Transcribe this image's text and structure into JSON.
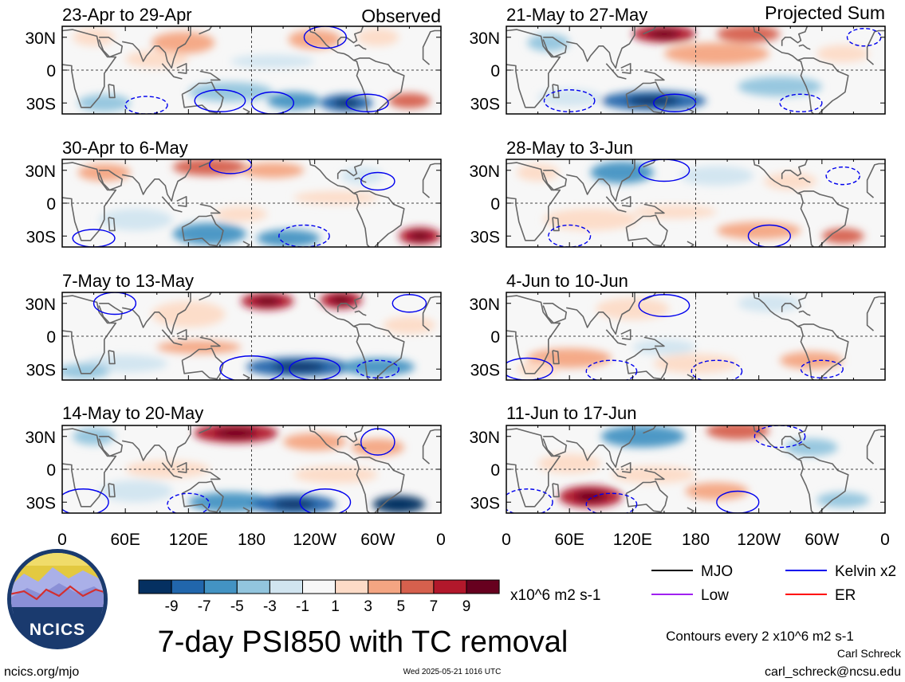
{
  "chart_data": {
    "type": "heatmap",
    "variable": "7-day PSI850 with TC removal",
    "panel_columns": [
      {
        "header": "Observed",
        "panels": [
          "23-Apr to 29-Apr",
          "30-Apr to 6-May",
          "7-May to 13-May",
          "14-May to 20-May"
        ]
      },
      {
        "header": "Projected Sum",
        "panels": [
          "21-May to 27-May",
          "28-May to 3-Jun",
          "4-Jun to 10-Jun",
          "11-Jun to 17-Jun"
        ]
      }
    ],
    "y_ticks": [
      "30N",
      "0",
      "30S"
    ],
    "x_ticks": [
      "0",
      "60E",
      "120E",
      "180",
      "120W",
      "60W",
      "0"
    ],
    "lon_range": [
      0,
      360
    ],
    "lat_range": [
      -40,
      40
    ],
    "colorbar": {
      "labels": [
        "-9",
        "-7",
        "-5",
        "-3",
        "-1",
        "1",
        "3",
        "5",
        "7",
        "9"
      ],
      "colors": [
        "#053061",
        "#2166ac",
        "#4393c3",
        "#92c5de",
        "#d1e5f0",
        "#f7f7f7",
        "#fddbc7",
        "#f4a582",
        "#d6604d",
        "#b2182b",
        "#67001f"
      ],
      "units": "x10^6 m2 s-1"
    },
    "legend": [
      {
        "label": "MJO",
        "color": "#000000"
      },
      {
        "label": "Kelvin x2",
        "color": "#0000ee"
      },
      {
        "label": "Low",
        "color": "#a020f0"
      },
      {
        "label": "ER",
        "color": "#ff0000"
      }
    ],
    "contour_note": "Contours every 2 x10^6 m2 s-1",
    "grid": true
  },
  "footer": {
    "logo_text": "NCICS",
    "title": "7-day PSI850 with TC removal",
    "site": "ncics.org/mjo",
    "timestamp": "Wed 2025-05-21 1016 UTC",
    "author": "Carl Schreck",
    "email": "carl_schreck@ncsu.edu"
  },
  "colors": {
    "logo_ring": "#1a3a6e",
    "logo_sky": "#e3c940",
    "logo_mountains": "#8a8fd6",
    "logo_line": "#d32f2f"
  }
}
